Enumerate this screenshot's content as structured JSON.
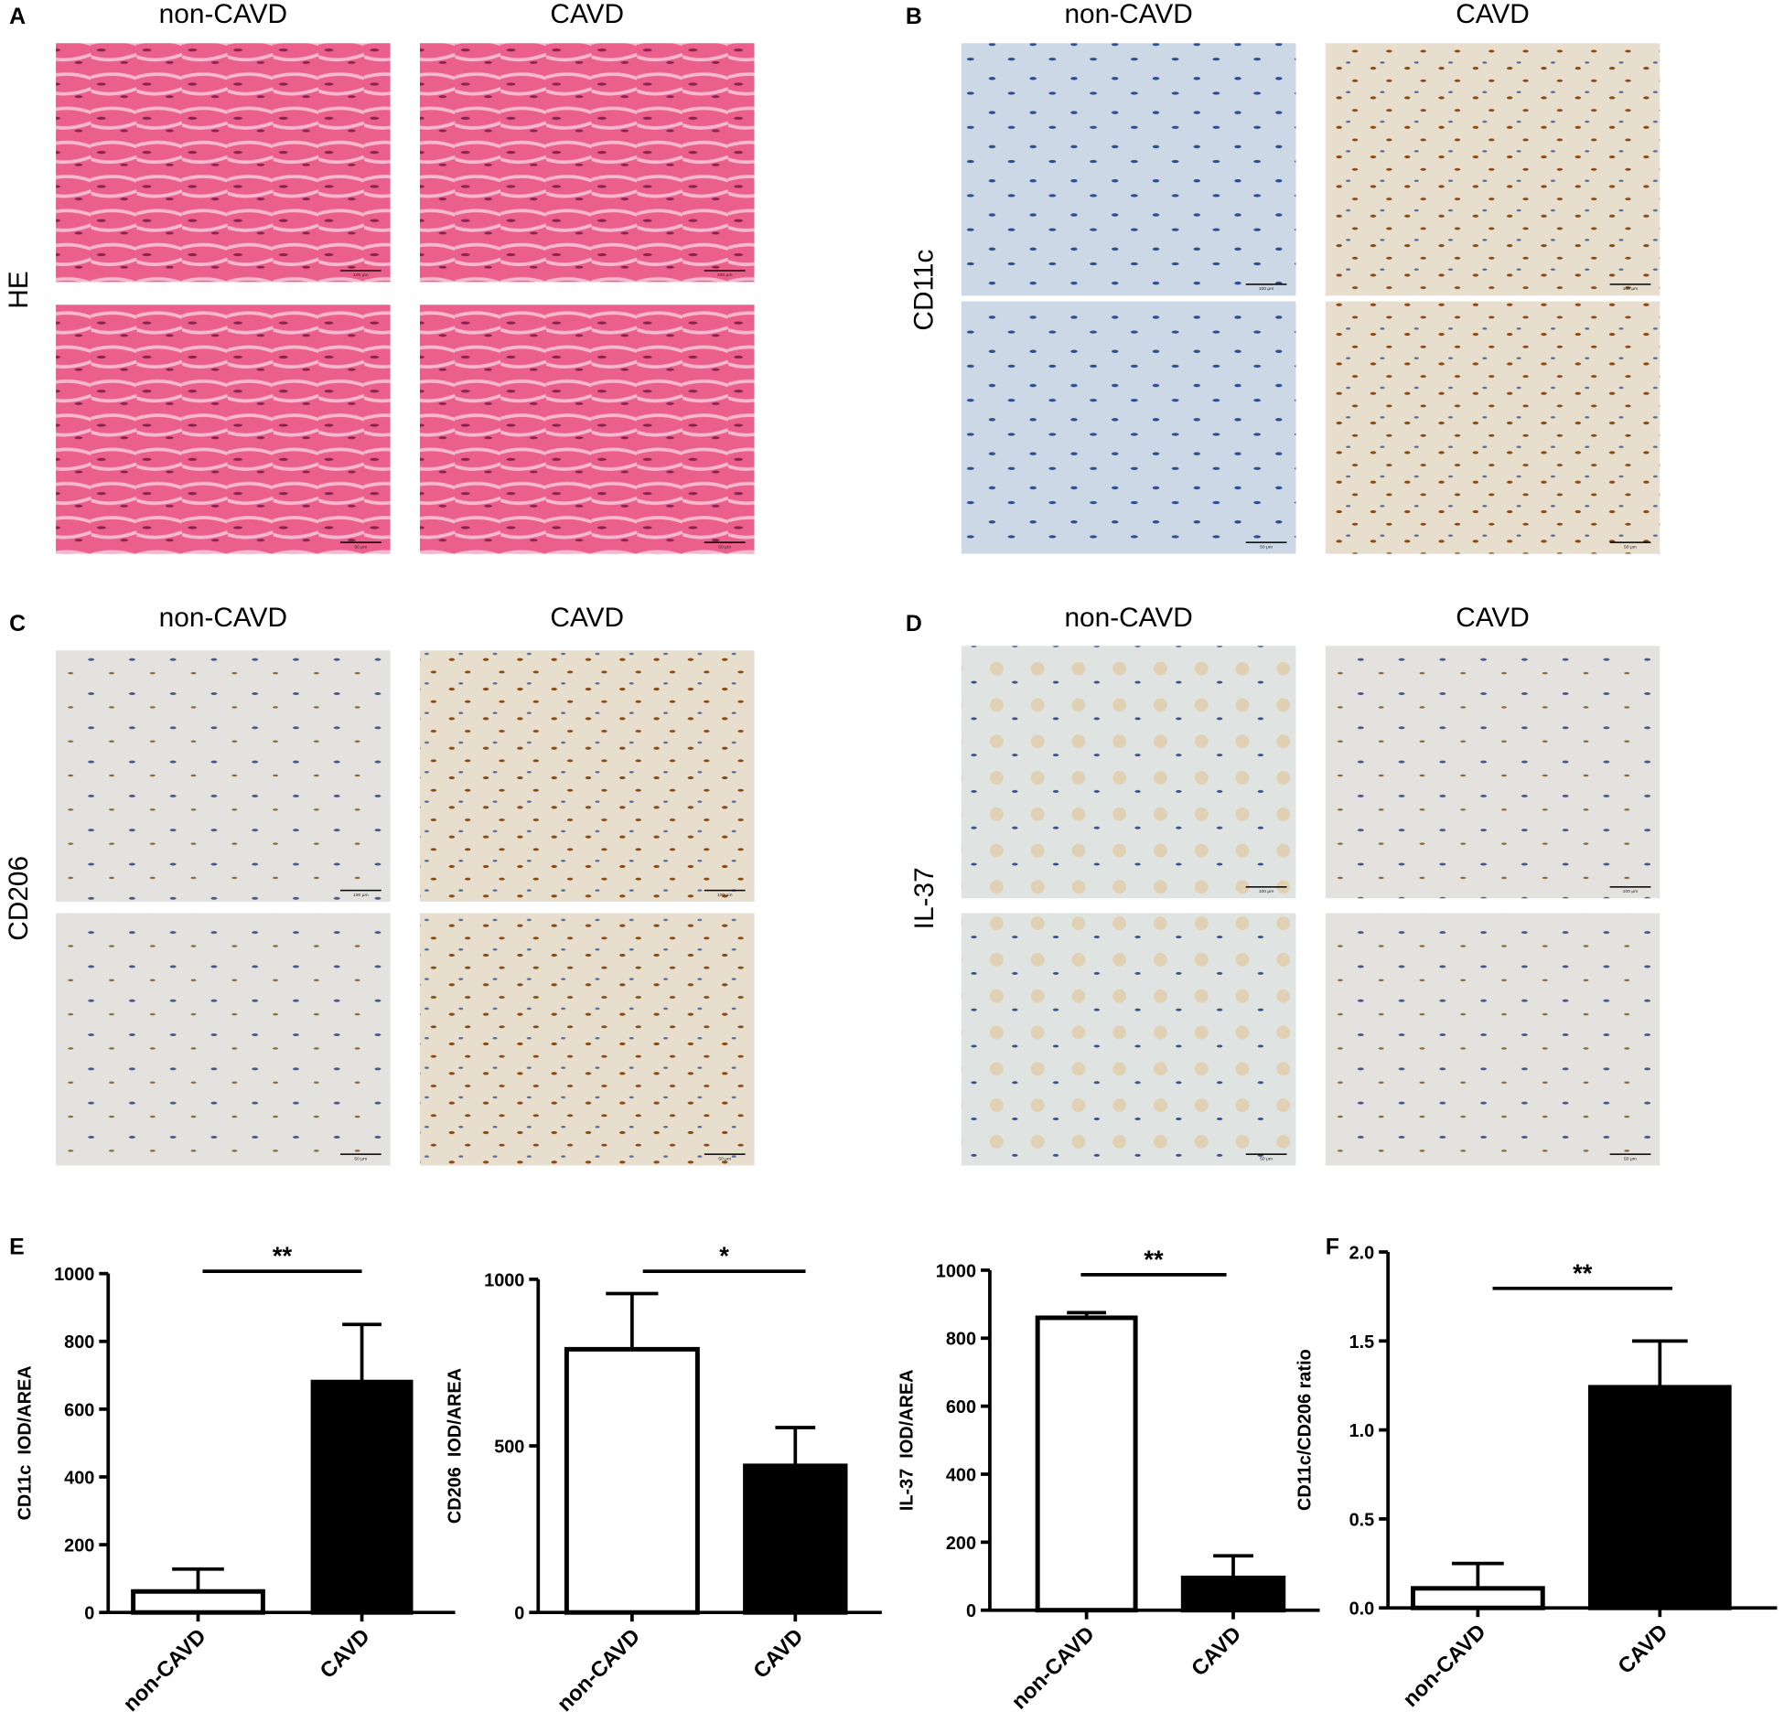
{
  "image_panels": [
    {
      "label": "A",
      "stain": "HE",
      "columns": [
        "non-CAVD",
        "CAVD"
      ],
      "scale_labels": [
        "100 μm",
        "50 μm"
      ]
    },
    {
      "label": "B",
      "stain": "CD11c",
      "columns": [
        "non-CAVD",
        "CAVD"
      ],
      "scale_labels": [
        "100 μm",
        "50 μm"
      ]
    },
    {
      "label": "C",
      "stain": "CD206",
      "columns": [
        "non-CAVD",
        "CAVD"
      ],
      "scale_labels": [
        "100 μm",
        "50 μm"
      ]
    },
    {
      "label": "D",
      "stain": "IL-37",
      "columns": [
        "non-CAVD",
        "CAVD"
      ],
      "scale_labels": [
        "100 μm",
        "50 μm"
      ]
    }
  ],
  "chart_data": [
    {
      "type": "bar",
      "panel_label": "E",
      "ylabel": "CD11c  IOD/AREA",
      "categories": [
        "non-CAVD",
        "CAVD"
      ],
      "values": [
        62,
        680
      ],
      "errors": [
        66,
        170
      ],
      "colors": [
        "#ffffff",
        "#000000"
      ],
      "ylim": [
        0,
        1000
      ],
      "yticks": [
        0,
        200,
        400,
        600,
        800,
        1000
      ],
      "annotation": "**"
    },
    {
      "type": "bar",
      "ylabel": "CD206  IOD/AREA",
      "categories": [
        "non-CAVD",
        "CAVD"
      ],
      "values": [
        790,
        440
      ],
      "errors": [
        167,
        115
      ],
      "colors": [
        "#ffffff",
        "#000000"
      ],
      "ylim": [
        0,
        1000
      ],
      "yticks": [
        0,
        500,
        1000
      ],
      "annotation": "*"
    },
    {
      "type": "bar",
      "ylabel": "IL-37  IOD/AREA",
      "categories": [
        "non-CAVD",
        "CAVD"
      ],
      "values": [
        860,
        95
      ],
      "errors": [
        15,
        65
      ],
      "colors": [
        "#ffffff",
        "#000000"
      ],
      "ylim": [
        0,
        1000
      ],
      "yticks": [
        0,
        200,
        400,
        600,
        800,
        1000
      ],
      "annotation": "**"
    },
    {
      "type": "bar",
      "panel_label": "F",
      "ylabel": "CD11c/CD206 ratio",
      "categories": [
        "non-CAVD",
        "CAVD"
      ],
      "values": [
        0.11,
        1.24
      ],
      "errors": [
        0.14,
        0.26
      ],
      "colors": [
        "#ffffff",
        "#000000"
      ],
      "ylim": [
        0,
        2
      ],
      "yticks": [
        {
          "value": 0,
          "label": "0.0"
        },
        0.5,
        {
          "value": 1,
          "label": "1.0"
        },
        1.5,
        {
          "value": 2,
          "label": "2.0"
        }
      ],
      "annotation": "**"
    }
  ]
}
